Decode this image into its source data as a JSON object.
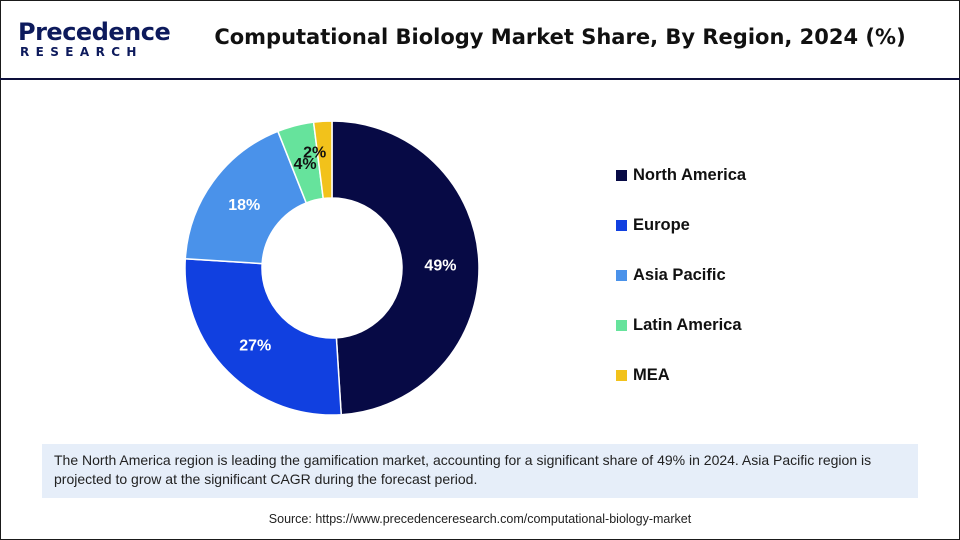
{
  "brand": {
    "name": "Precedence",
    "sub": "RESEARCH"
  },
  "header": {
    "title": "Computational Biology Market Share, By Region, 2024 (%)"
  },
  "chart_data": {
    "type": "pie",
    "donut": true,
    "title": "Computational Biology Market Share, By Region, 2024 (%)",
    "categories": [
      "North America",
      "Europe",
      "Asia Pacific",
      "Latin America",
      "MEA"
    ],
    "values": [
      49,
      27,
      18,
      4,
      2
    ],
    "labels": [
      "49%",
      "27%",
      "18%",
      "4%",
      "2%"
    ],
    "colors": [
      "#070a45",
      "#1140e0",
      "#4a92ea",
      "#66e39c",
      "#f2c21b"
    ],
    "legend_position": "right"
  },
  "note": {
    "text": "The North America region is leading the gamification market, accounting for a significant share of 49% in 2024. Asia Pacific region is projected to grow at the significant CAGR during the forecast period."
  },
  "source": {
    "text": "Source: https://www.precedenceresearch.com/computational-biology-market"
  }
}
